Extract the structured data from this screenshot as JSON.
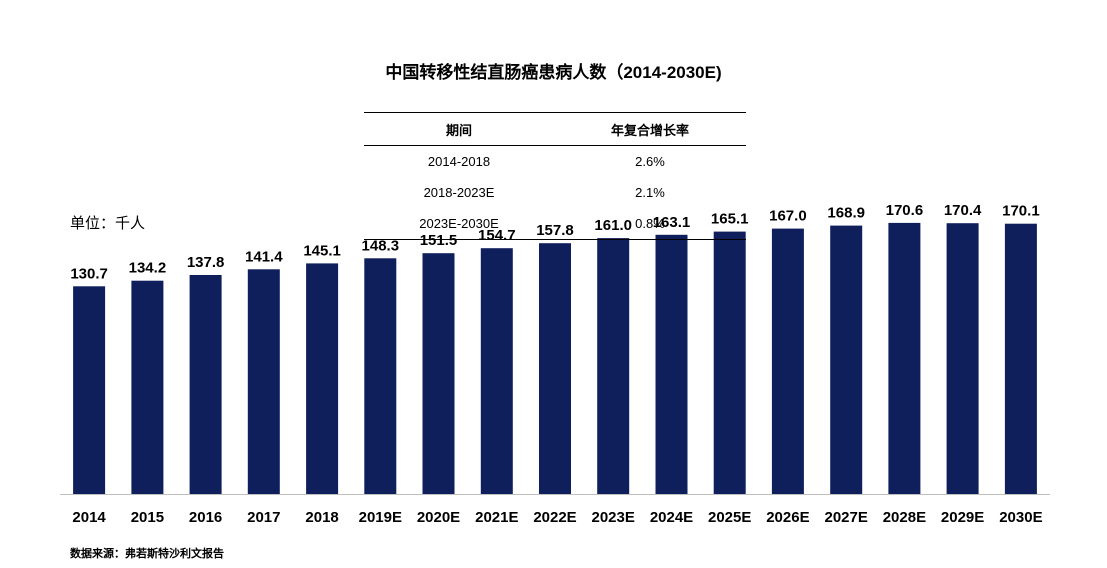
{
  "title": "中国转移性结直肠癌患病人数（2014-2030E)",
  "unit_label": "单位：千人",
  "source": "数据来源：弗若斯特沙利文报告",
  "cagr_table": {
    "headers": [
      "期间",
      "年复合增长率"
    ],
    "rows": [
      {
        "period": "2014-2018",
        "rate": "2.6%"
      },
      {
        "period": "2018-2023E",
        "rate": "2.1%"
      },
      {
        "period": "2023E-2030E",
        "rate": "0.8%"
      }
    ]
  },
  "colors": {
    "bar": "#0E1F5B",
    "axis": "#BFBFBF"
  },
  "chart_data": {
    "type": "bar",
    "title": "中国转移性结直肠癌患病人数（2014-2030E)",
    "ylabel": "单位：千人",
    "xlabel": "",
    "ylim": [
      0,
      185
    ],
    "grid": false,
    "categories": [
      "2014",
      "2015",
      "2016",
      "2017",
      "2018",
      "2019E",
      "2020E",
      "2021E",
      "2022E",
      "2023E",
      "2024E",
      "2025E",
      "2026E",
      "2027E",
      "2028E",
      "2029E",
      "2030E"
    ],
    "values": [
      130.7,
      134.2,
      137.8,
      141.4,
      145.1,
      148.3,
      151.5,
      154.7,
      157.8,
      161.0,
      163.1,
      165.1,
      167.0,
      168.9,
      170.6,
      170.4,
      170.1
    ],
    "value_labels": [
      "130.7",
      "134.2",
      "137.8",
      "141.4",
      "145.1",
      "148.3",
      "151.5",
      "154.7",
      "157.8",
      "161.0",
      "163.1",
      "165.1",
      "167.0",
      "168.9",
      "170.6",
      "170.4",
      "170.1"
    ]
  }
}
